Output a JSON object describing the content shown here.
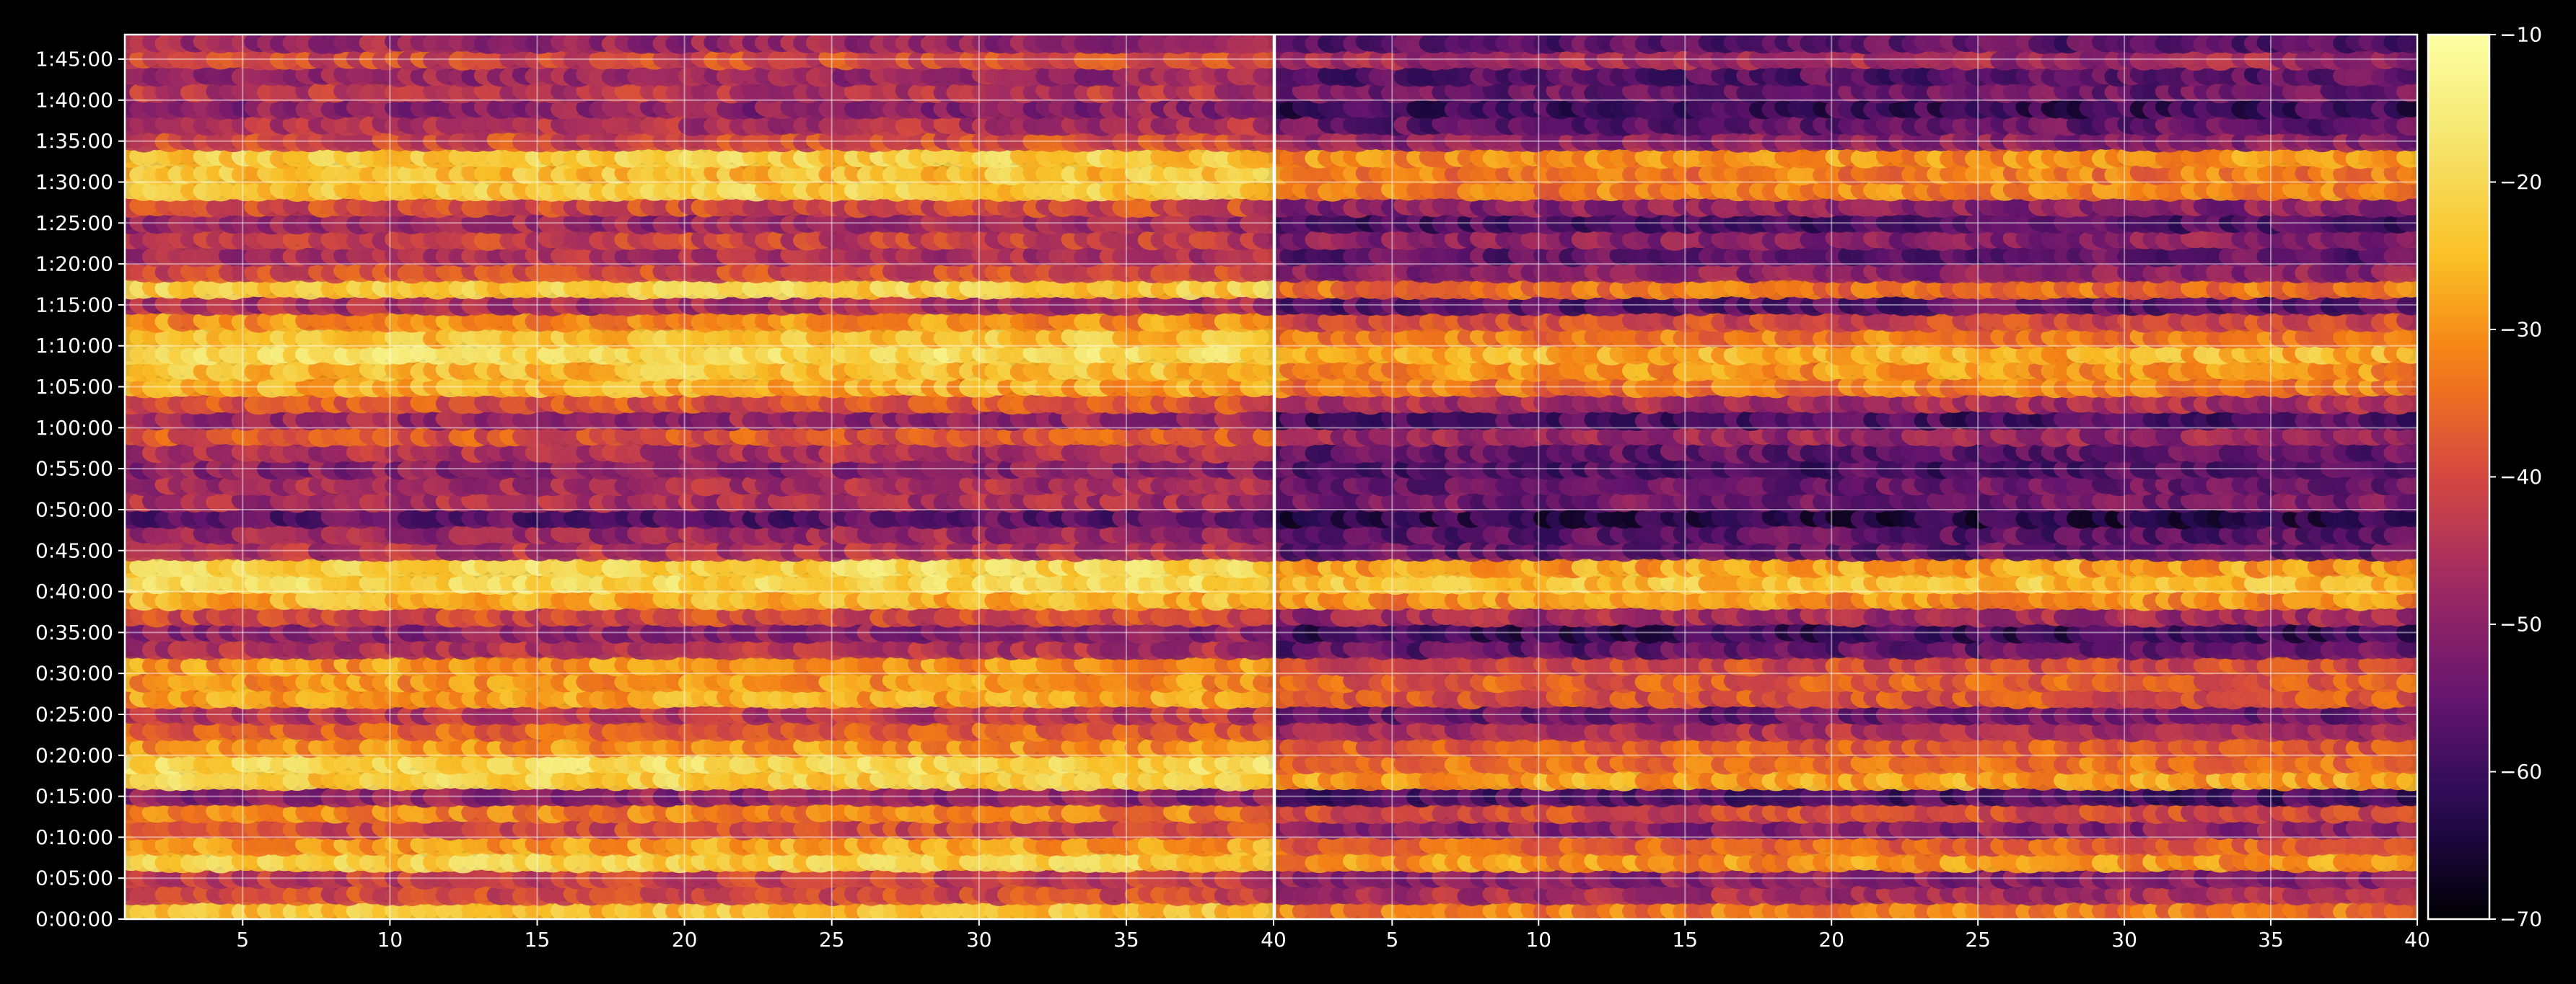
{
  "chart_data": {
    "type": "heatmap",
    "colormap": "inferno",
    "background": "#000000",
    "foreground": "#ffffff",
    "grid": true,
    "colorbar": {
      "range": [
        -70,
        -10
      ],
      "ticks": [
        "−10",
        "−20",
        "−30",
        "−40",
        "−50",
        "−60",
        "−70"
      ]
    },
    "y_range_seconds": [
      0,
      6480
    ],
    "y_ticks": [
      "0:00:00",
      "0:05:00",
      "0:10:00",
      "0:15:00",
      "0:20:00",
      "0:25:00",
      "0:30:00",
      "0:35:00",
      "0:40:00",
      "0:45:00",
      "0:50:00",
      "0:55:00",
      "1:00:00",
      "1:05:00",
      "1:10:00",
      "1:15:00",
      "1:20:00",
      "1:25:00",
      "1:30:00",
      "1:35:00",
      "1:40:00",
      "1:45:00"
    ],
    "panels": [
      {
        "x_range": [
          1,
          40
        ],
        "x_ticks": [
          "5",
          "10",
          "15",
          "20",
          "25",
          "30",
          "35",
          "40"
        ]
      },
      {
        "x_range": [
          1,
          40
        ],
        "x_ticks": [
          "5",
          "10",
          "15",
          "20",
          "25",
          "30",
          "35",
          "40"
        ]
      }
    ],
    "row_levels_db": [
      [
        -24,
        -33
      ],
      [
        -40,
        -46
      ],
      [
        -42,
        -50
      ],
      [
        -22,
        -30
      ],
      [
        -28,
        -36
      ],
      [
        -40,
        -50
      ],
      [
        -32,
        -40
      ],
      [
        -50,
        -58
      ],
      [
        -22,
        -28
      ],
      [
        -20,
        -34
      ],
      [
        -30,
        -37
      ],
      [
        -36,
        -46
      ],
      [
        -44,
        -54
      ],
      [
        -28,
        -38
      ],
      [
        -30,
        -37
      ],
      [
        -30,
        -40
      ],
      [
        -45,
        -55
      ],
      [
        -50,
        -60
      ],
      [
        -40,
        -47
      ],
      [
        -26,
        -30
      ],
      [
        -20,
        -24
      ],
      [
        -20,
        -28
      ],
      [
        -45,
        -55
      ],
      [
        -48,
        -56
      ],
      [
        -56,
        -62
      ],
      [
        -46,
        -53
      ],
      [
        -46,
        -54
      ],
      [
        -50,
        -58
      ],
      [
        -45,
        -55
      ],
      [
        -38,
        -48
      ],
      [
        -48,
        -58
      ],
      [
        -38,
        -46
      ],
      [
        -27,
        -33
      ],
      [
        -24,
        -30
      ],
      [
        -19,
        -26
      ],
      [
        -24,
        -33
      ],
      [
        -30,
        -40
      ],
      [
        -46,
        -56
      ],
      [
        -22,
        -34
      ],
      [
        -40,
        -50
      ],
      [
        -46,
        -55
      ],
      [
        -42,
        -50
      ],
      [
        -48,
        -58
      ],
      [
        -40,
        -50
      ],
      [
        -22,
        -32
      ],
      [
        -24,
        -33
      ],
      [
        -22,
        -30
      ],
      [
        -40,
        -50
      ],
      [
        -45,
        -55
      ],
      [
        -50,
        -60
      ],
      [
        -44,
        -54
      ],
      [
        -48,
        -56
      ],
      [
        -40,
        -47
      ],
      [
        -48,
        -56
      ]
    ]
  }
}
